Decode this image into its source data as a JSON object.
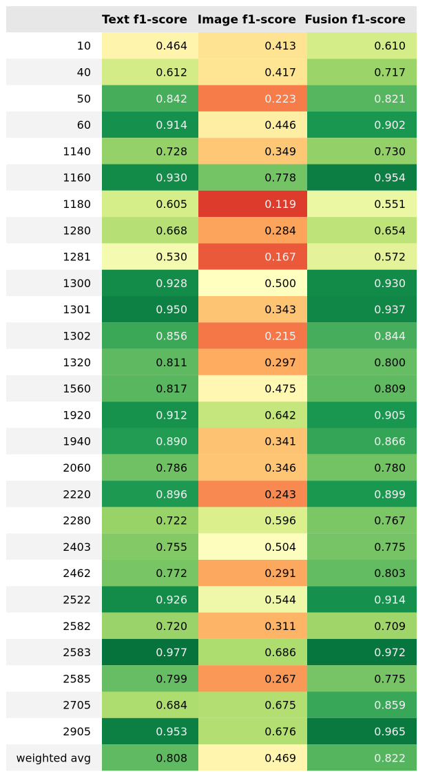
{
  "chart_data": {
    "type": "table",
    "columns": [
      "",
      "Text f1-score",
      "Image f1-score",
      "Fusion f1-score"
    ],
    "rows": [
      {
        "label": "10",
        "values": [
          "0.464",
          "0.413",
          "0.610"
        ]
      },
      {
        "label": "40",
        "values": [
          "0.612",
          "0.417",
          "0.717"
        ]
      },
      {
        "label": "50",
        "values": [
          "0.842",
          "0.223",
          "0.821"
        ]
      },
      {
        "label": "60",
        "values": [
          "0.914",
          "0.446",
          "0.902"
        ]
      },
      {
        "label": "1140",
        "values": [
          "0.728",
          "0.349",
          "0.730"
        ]
      },
      {
        "label": "1160",
        "values": [
          "0.930",
          "0.778",
          "0.954"
        ]
      },
      {
        "label": "1180",
        "values": [
          "0.605",
          "0.119",
          "0.551"
        ]
      },
      {
        "label": "1280",
        "values": [
          "0.668",
          "0.284",
          "0.654"
        ]
      },
      {
        "label": "1281",
        "values": [
          "0.530",
          "0.167",
          "0.572"
        ]
      },
      {
        "label": "1300",
        "values": [
          "0.928",
          "0.500",
          "0.930"
        ]
      },
      {
        "label": "1301",
        "values": [
          "0.950",
          "0.343",
          "0.937"
        ]
      },
      {
        "label": "1302",
        "values": [
          "0.856",
          "0.215",
          "0.844"
        ]
      },
      {
        "label": "1320",
        "values": [
          "0.811",
          "0.297",
          "0.800"
        ]
      },
      {
        "label": "1560",
        "values": [
          "0.817",
          "0.475",
          "0.809"
        ]
      },
      {
        "label": "1920",
        "values": [
          "0.912",
          "0.642",
          "0.905"
        ]
      },
      {
        "label": "1940",
        "values": [
          "0.890",
          "0.341",
          "0.866"
        ]
      },
      {
        "label": "2060",
        "values": [
          "0.786",
          "0.346",
          "0.780"
        ]
      },
      {
        "label": "2220",
        "values": [
          "0.896",
          "0.243",
          "0.899"
        ]
      },
      {
        "label": "2280",
        "values": [
          "0.722",
          "0.596",
          "0.767"
        ]
      },
      {
        "label": "2403",
        "values": [
          "0.755",
          "0.504",
          "0.775"
        ]
      },
      {
        "label": "2462",
        "values": [
          "0.772",
          "0.291",
          "0.803"
        ]
      },
      {
        "label": "2522",
        "values": [
          "0.926",
          "0.544",
          "0.914"
        ]
      },
      {
        "label": "2582",
        "values": [
          "0.720",
          "0.311",
          "0.709"
        ]
      },
      {
        "label": "2583",
        "values": [
          "0.977",
          "0.686",
          "0.972"
        ]
      },
      {
        "label": "2585",
        "values": [
          "0.799",
          "0.267",
          "0.775"
        ]
      },
      {
        "label": "2705",
        "values": [
          "0.684",
          "0.675",
          "0.859"
        ]
      },
      {
        "label": "2905",
        "values": [
          "0.953",
          "0.676",
          "0.965"
        ]
      },
      {
        "label": "weighted avg",
        "values": [
          "0.808",
          "0.469",
          "0.822"
        ]
      }
    ],
    "colormap": "RdYlGn",
    "color_range": [
      0,
      1
    ],
    "header_background": "#e7e7e7",
    "row_label_background_alt": "#f3f3f3"
  }
}
